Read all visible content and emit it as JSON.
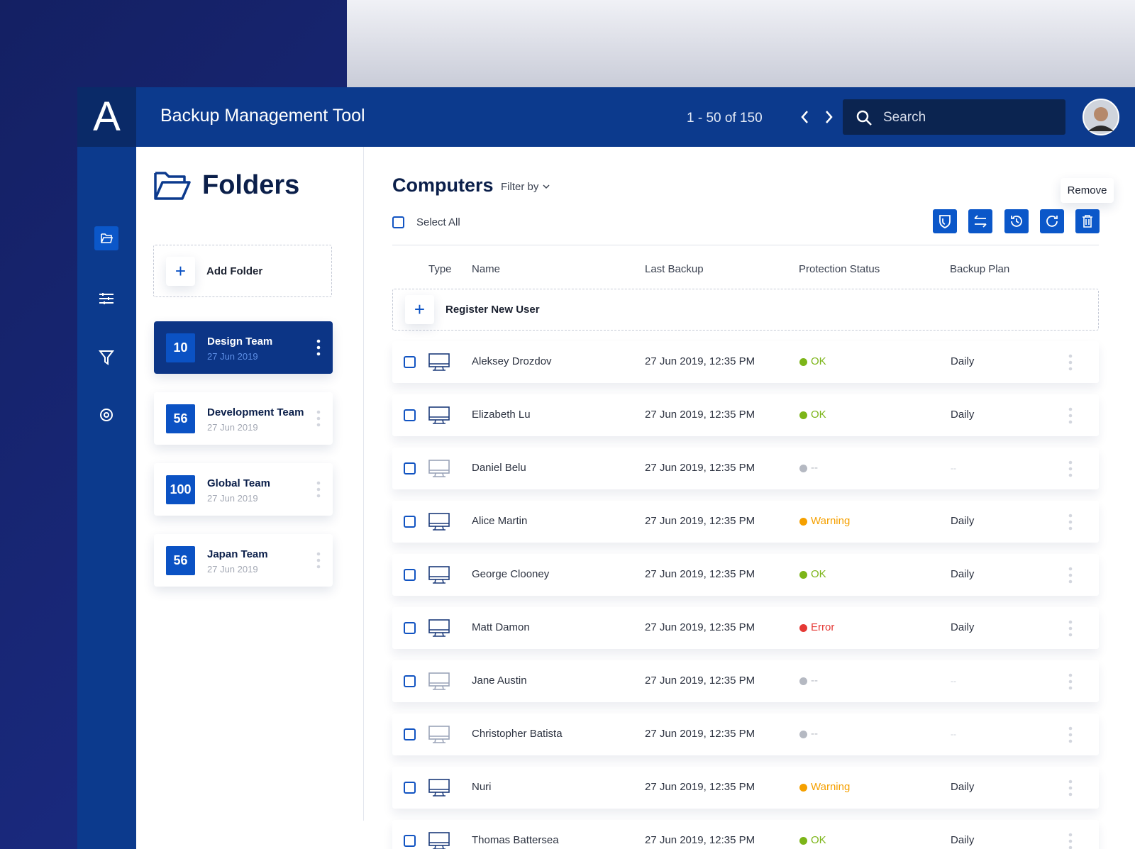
{
  "header": {
    "logo": "A",
    "title": "Backup Management Tool",
    "pagination": "1 - 50 of 150",
    "search_placeholder": "Search"
  },
  "folders": {
    "title": "Folders",
    "add_label": "Add Folder",
    "items": [
      {
        "count": 10,
        "name": "Design Team",
        "date": "27 Jun 2019"
      },
      {
        "count": 56,
        "name": "Development Team",
        "date": "27 Jun 2019"
      },
      {
        "count": 100,
        "name": "Global Team",
        "date": "27 Jun 2019"
      },
      {
        "count": 56,
        "name": "Japan Team",
        "date": "27 Jun 2019"
      }
    ]
  },
  "computers": {
    "title": "Computers",
    "filter_label": "Filter by",
    "select_all": "Select All",
    "tooltip": "Remove",
    "columns": [
      "Type",
      "Name",
      "Last Backup",
      "Protection Status",
      "Backup Plan"
    ],
    "register_label": "Register New User",
    "rows": [
      {
        "name": "Aleksey Drozdov",
        "last_backup": "27 Jun 2019, 12:35 PM",
        "status": "OK",
        "plan": "Daily"
      },
      {
        "name": "Elizabeth Lu",
        "last_backup": "27 Jun 2019, 12:35 PM",
        "status": "OK",
        "plan": "Daily"
      },
      {
        "name": "Daniel Belu",
        "last_backup": "27 Jun 2019, 12:35 PM",
        "status": "--",
        "plan": "--"
      },
      {
        "name": "Alice Martin",
        "last_backup": "27 Jun 2019, 12:35 PM",
        "status": "Warning",
        "plan": "Daily"
      },
      {
        "name": "George Clooney",
        "last_backup": "27 Jun 2019, 12:35 PM",
        "status": "OK",
        "plan": "Daily"
      },
      {
        "name": "Matt Damon",
        "last_backup": "27 Jun 2019, 12:35 PM",
        "status": "Error",
        "plan": "Daily"
      },
      {
        "name": "Jane Austin",
        "last_backup": "27 Jun 2019, 12:35 PM",
        "status": "--",
        "plan": "--"
      },
      {
        "name": "Christopher Batista",
        "last_backup": "27 Jun 2019, 12:35 PM",
        "status": "--",
        "plan": "--"
      },
      {
        "name": "Nuri",
        "last_backup": "27 Jun 2019, 12:35 PM",
        "status": "Warning",
        "plan": "Daily"
      },
      {
        "name": "Thomas Battersea",
        "last_backup": "27 Jun 2019, 12:35 PM",
        "status": "OK",
        "plan": "Daily"
      }
    ]
  }
}
